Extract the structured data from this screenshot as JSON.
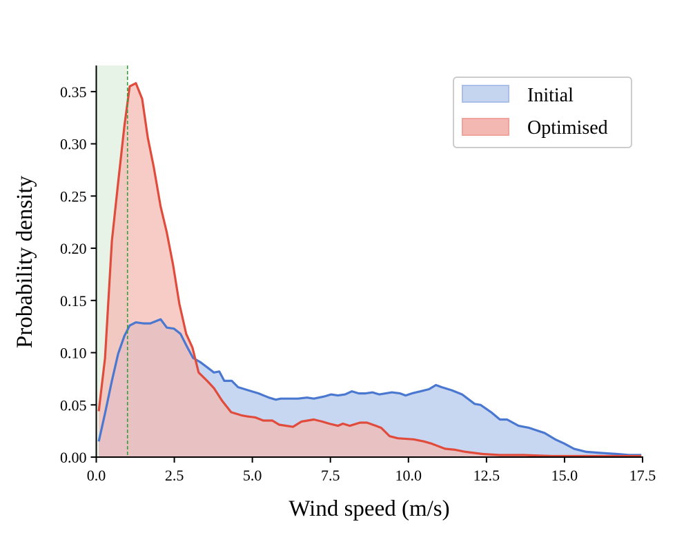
{
  "chart_data": {
    "type": "area",
    "title": "",
    "xlabel": "Wind speed (m/s)",
    "ylabel": "Probability density",
    "xlim": [
      0,
      17.5
    ],
    "ylim": [
      0,
      0.375
    ],
    "grid": false,
    "legend_position": "top-right",
    "xticks": [
      0.0,
      2.5,
      5.0,
      7.5,
      10.0,
      12.5,
      15.0,
      17.5
    ],
    "xtick_labels": [
      "0.0",
      "2.5",
      "5.0",
      "7.5",
      "10.0",
      "12.5",
      "15.0",
      "17.5"
    ],
    "yticks": [
      0.0,
      0.05,
      0.1,
      0.15,
      0.2,
      0.25,
      0.3,
      0.35
    ],
    "ytick_labels": [
      "0.00",
      "0.05",
      "0.10",
      "0.15",
      "0.20",
      "0.25",
      "0.30",
      "0.35"
    ],
    "shaded_region": {
      "x": [
        0,
        1.0
      ],
      "color": "#e8f3e8"
    },
    "vline": {
      "x": 1.0,
      "color": "#3a9a3a",
      "style": "dashed"
    },
    "series": [
      {
        "name": "Initial",
        "line_color": "#4a78d0",
        "fill_color": "#c5d5f0",
        "x": [
          0.08,
          0.28,
          0.5,
          0.7,
          0.9,
          1.07,
          1.27,
          1.51,
          1.73,
          2.06,
          2.26,
          2.49,
          2.7,
          2.9,
          3.1,
          3.33,
          3.55,
          3.77,
          3.94,
          4.1,
          4.34,
          4.54,
          4.87,
          5.2,
          5.53,
          5.75,
          5.91,
          6.2,
          6.46,
          6.75,
          6.97,
          7.3,
          7.52,
          7.74,
          7.97,
          8.19,
          8.41,
          8.63,
          8.85,
          9.07,
          9.47,
          9.73,
          9.91,
          10.11,
          10.39,
          10.66,
          10.88,
          11.06,
          11.39,
          11.72,
          12.12,
          12.31,
          12.65,
          12.93,
          13.16,
          13.53,
          13.87,
          14.37,
          14.7,
          14.99,
          15.3,
          15.7,
          16.14,
          16.69,
          17.06,
          17.46
        ],
        "y": [
          0.015,
          0.042,
          0.073,
          0.099,
          0.116,
          0.126,
          0.129,
          0.128,
          0.128,
          0.132,
          0.124,
          0.123,
          0.118,
          0.106,
          0.095,
          0.091,
          0.086,
          0.081,
          0.082,
          0.073,
          0.073,
          0.067,
          0.064,
          0.061,
          0.057,
          0.055,
          0.056,
          0.056,
          0.056,
          0.057,
          0.056,
          0.058,
          0.06,
          0.059,
          0.06,
          0.063,
          0.061,
          0.061,
          0.062,
          0.06,
          0.062,
          0.061,
          0.059,
          0.061,
          0.063,
          0.065,
          0.069,
          0.067,
          0.064,
          0.06,
          0.051,
          0.05,
          0.043,
          0.036,
          0.036,
          0.03,
          0.028,
          0.023,
          0.017,
          0.013,
          0.008,
          0.005,
          0.004,
          0.003,
          0.002,
          0.002
        ]
      },
      {
        "name": "Optimised",
        "line_color": "#e04b3c",
        "fill_color": "#f4b8b2",
        "x": [
          0.08,
          0.28,
          0.5,
          0.7,
          0.9,
          1.07,
          1.27,
          1.47,
          1.65,
          1.84,
          2.06,
          2.26,
          2.46,
          2.66,
          2.88,
          3.08,
          3.28,
          3.55,
          3.77,
          4.03,
          4.32,
          4.65,
          4.83,
          5.09,
          5.35,
          5.64,
          5.86,
          6.3,
          6.57,
          6.97,
          7.24,
          7.46,
          7.74,
          7.9,
          8.12,
          8.45,
          8.67,
          8.96,
          9.13,
          9.4,
          9.66,
          10.17,
          10.5,
          10.73,
          11.17,
          11.5,
          11.83,
          12.38,
          12.93,
          13.71,
          14.59,
          17.46
        ],
        "y": [
          0.044,
          0.095,
          0.207,
          0.263,
          0.317,
          0.355,
          0.358,
          0.343,
          0.306,
          0.278,
          0.24,
          0.215,
          0.184,
          0.147,
          0.118,
          0.105,
          0.081,
          0.073,
          0.066,
          0.054,
          0.043,
          0.04,
          0.039,
          0.038,
          0.035,
          0.035,
          0.031,
          0.029,
          0.034,
          0.036,
          0.034,
          0.032,
          0.03,
          0.032,
          0.03,
          0.033,
          0.033,
          0.03,
          0.028,
          0.02,
          0.018,
          0.017,
          0.015,
          0.013,
          0.008,
          0.007,
          0.005,
          0.003,
          0.002,
          0.002,
          0.001,
          0.001
        ]
      }
    ]
  }
}
